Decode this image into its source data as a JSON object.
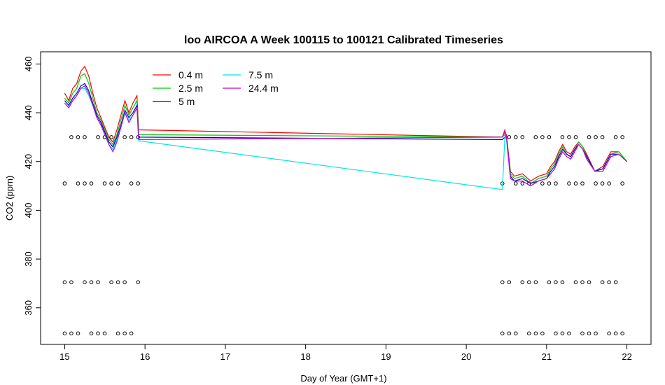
{
  "chart_data": {
    "type": "line",
    "title": "loo AIRCOA A  Week 100115 to 100121  Calibrated Timeseries",
    "xlabel": "Day of Year (GMT+1)",
    "ylabel": "CO2 (ppm)",
    "xlim": [
      14.7,
      22.3
    ],
    "ylim": [
      345,
      465
    ],
    "xticks": [
      15,
      16,
      17,
      18,
      19,
      20,
      21,
      22
    ],
    "yticks": [
      360,
      380,
      400,
      420,
      440,
      460
    ],
    "legend_position": "top-left",
    "series": [
      {
        "name": "0.4 m",
        "color": "#ff0000",
        "x": [
          15.0,
          15.05,
          15.1,
          15.15,
          15.2,
          15.25,
          15.3,
          15.35,
          15.4,
          15.45,
          15.5,
          15.55,
          15.6,
          15.65,
          15.7,
          15.75,
          15.8,
          15.85,
          15.9,
          15.92,
          20.45,
          20.48,
          20.5,
          20.55,
          20.6,
          20.7,
          20.8,
          20.9,
          21.0,
          21.05,
          21.1,
          21.15,
          21.2,
          21.25,
          21.3,
          21.35,
          21.4,
          21.45,
          21.5,
          21.6,
          21.7,
          21.8,
          21.9,
          22.0
        ],
        "y": [
          448,
          445,
          450,
          452,
          457,
          459,
          455,
          448,
          442,
          438,
          434,
          430,
          428,
          433,
          439,
          445,
          440,
          444,
          447,
          433,
          430,
          432,
          431,
          416,
          414,
          415,
          412,
          414,
          415,
          418,
          420,
          424,
          427,
          424,
          423,
          426,
          428,
          426,
          423,
          416,
          418,
          424,
          424,
          420
        ]
      },
      {
        "name": "2.5 m",
        "color": "#00cc00",
        "x": [
          15.0,
          15.05,
          15.1,
          15.15,
          15.2,
          15.25,
          15.3,
          15.35,
          15.4,
          15.45,
          15.5,
          15.55,
          15.6,
          15.65,
          15.7,
          15.75,
          15.8,
          15.85,
          15.9,
          15.92,
          20.45,
          20.48,
          20.5,
          20.55,
          20.6,
          20.7,
          20.8,
          20.9,
          21.0,
          21.05,
          21.1,
          21.15,
          21.2,
          21.25,
          21.3,
          21.35,
          21.4,
          21.45,
          21.5,
          21.6,
          21.7,
          21.8,
          21.9,
          22.0
        ],
        "y": [
          446,
          444,
          448,
          450,
          455,
          456,
          452,
          446,
          440,
          437,
          433,
          429,
          427,
          431,
          437,
          443,
          439,
          442,
          445,
          431,
          430,
          431,
          430,
          415,
          413,
          414,
          411,
          413,
          414,
          417,
          419,
          423,
          426,
          423,
          422,
          425,
          428,
          426,
          422,
          416,
          417,
          423,
          424,
          420
        ]
      },
      {
        "name": "5 m",
        "color": "#0000cc",
        "x": [
          15.0,
          15.05,
          15.1,
          15.15,
          15.2,
          15.25,
          15.3,
          15.35,
          15.4,
          15.45,
          15.5,
          15.55,
          15.6,
          15.65,
          15.7,
          15.75,
          15.8,
          15.85,
          15.9,
          15.92,
          20.45,
          20.48,
          20.5,
          20.55,
          20.6,
          20.7,
          20.8,
          20.9,
          21.0,
          21.05,
          21.1,
          21.15,
          21.2,
          21.25,
          21.3,
          21.35,
          21.4,
          21.45,
          21.5,
          21.6,
          21.7,
          21.8,
          21.9,
          22.0
        ],
        "y": [
          445,
          443,
          446,
          448,
          451,
          452,
          449,
          444,
          439,
          436,
          432,
          428,
          426,
          430,
          435,
          441,
          438,
          440,
          443,
          430,
          429,
          430,
          430,
          414,
          412,
          413,
          411,
          412,
          413,
          416,
          418,
          422,
          425,
          423,
          422,
          425,
          427,
          425,
          422,
          416,
          417,
          423,
          423,
          420
        ]
      },
      {
        "name": "7.5 m",
        "color": "#00e5e5",
        "x": [
          15.0,
          15.05,
          15.1,
          15.15,
          15.2,
          15.25,
          15.3,
          15.35,
          15.4,
          15.45,
          15.5,
          15.55,
          15.6,
          15.65,
          15.7,
          15.75,
          15.8,
          15.85,
          15.9,
          15.92,
          20.45,
          20.48,
          20.5,
          20.55,
          20.6,
          20.7,
          20.8,
          20.9,
          21.0,
          21.05,
          21.1,
          21.15,
          21.2,
          21.25,
          21.3,
          21.35,
          21.4,
          21.45,
          21.5,
          21.6,
          21.7,
          21.8,
          21.9,
          22.0
        ],
        "y": [
          444,
          442,
          445,
          447,
          450,
          450,
          447,
          443,
          438,
          435,
          431,
          427,
          425,
          429,
          434,
          440,
          437,
          439,
          442,
          428.5,
          408.5,
          430,
          429,
          413,
          412,
          412,
          410,
          412,
          413,
          415,
          417,
          421,
          424,
          422,
          421,
          424,
          427,
          425,
          421,
          416,
          416,
          422,
          423,
          420
        ]
      },
      {
        "name": "24.4 m",
        "color": "#cc00cc",
        "x": [
          15.0,
          15.05,
          15.1,
          15.15,
          15.2,
          15.25,
          15.3,
          15.35,
          15.4,
          15.45,
          15.5,
          15.55,
          15.6,
          15.65,
          15.7,
          15.75,
          15.8,
          15.85,
          15.9,
          15.92,
          20.45,
          20.48,
          20.5,
          20.55,
          20.6,
          20.7,
          20.8,
          20.9,
          21.0,
          21.05,
          21.1,
          21.15,
          21.2,
          21.25,
          21.3,
          21.35,
          21.4,
          21.45,
          21.5,
          21.6,
          21.7,
          21.8,
          21.9,
          22.0
        ],
        "y": [
          444,
          442,
          445,
          447,
          450,
          451,
          448,
          443,
          438,
          435,
          431,
          427,
          424,
          428,
          434,
          440,
          436,
          439,
          442,
          429,
          430,
          433,
          430,
          413,
          412,
          412,
          410,
          412,
          413,
          415,
          417,
          421,
          424,
          422,
          421,
          424,
          427,
          425,
          421,
          416,
          416,
          422,
          423,
          420
        ]
      }
    ],
    "markers": {
      "levels": [
        349.5,
        370.5,
        411,
        430
      ],
      "segment_1": [
        15.0,
        15.95
      ],
      "segment_2": [
        20.45,
        22.0
      ],
      "step": 0.083
    }
  }
}
